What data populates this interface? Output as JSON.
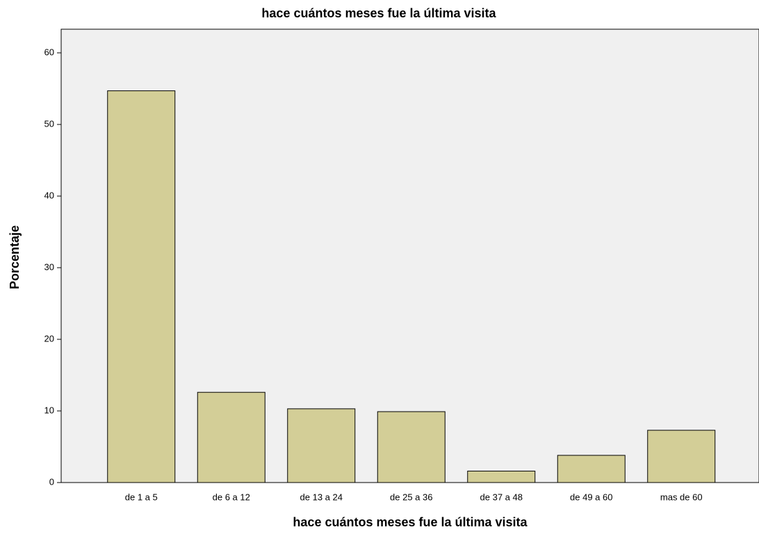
{
  "chart_data": {
    "type": "bar",
    "title": "hace cuántos meses fue la última visita",
    "x_label": "hace cuántos meses fue la última visita",
    "y_label": "Porcentaje",
    "categories": [
      "de 1 a 5",
      "de 6 a 12",
      "de 13 a 24",
      "de 25 a 36",
      "de 37 a 48",
      "de 49 a 60",
      "mas de 60"
    ],
    "values": [
      54.7,
      12.6,
      10.3,
      9.9,
      1.6,
      3.8,
      7.3
    ],
    "color": "#d3ce97",
    "ylim": [
      0,
      63.3
    ],
    "yticks": [
      0,
      10,
      20,
      30,
      40,
      50,
      60
    ],
    "grid": false
  }
}
